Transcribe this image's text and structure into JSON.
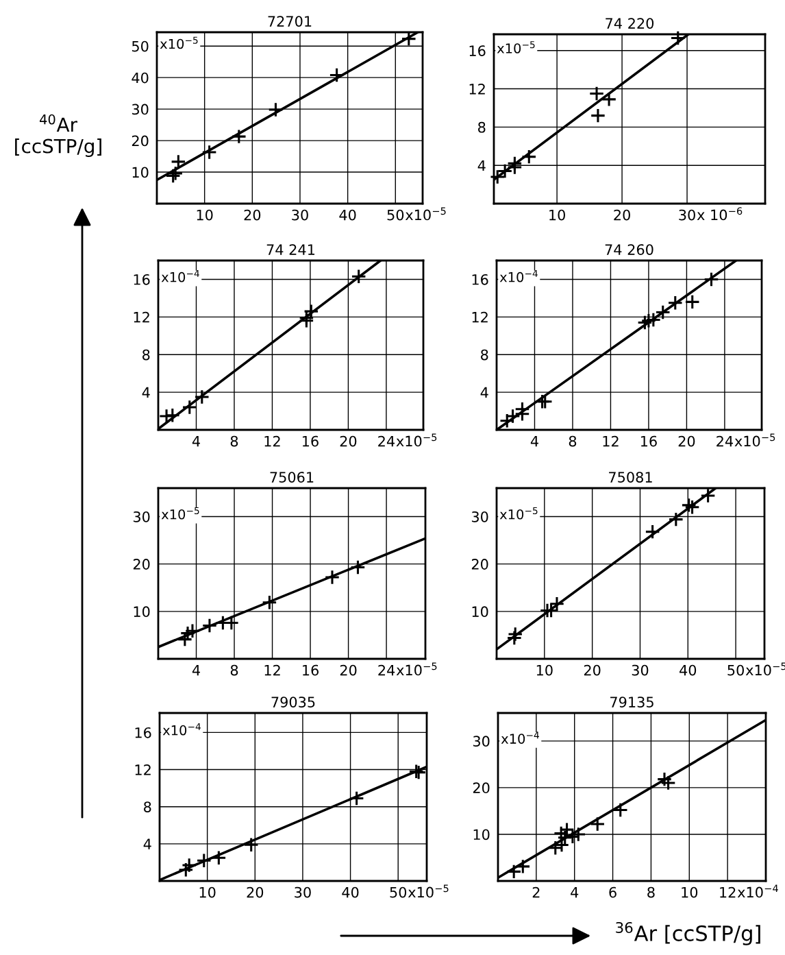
{
  "chart_data": [
    {
      "type": "scatter",
      "title": "72701",
      "ylabel": "$^{40}$Ar\n[ccSTP/g]",
      "grid": true,
      "xlim": [
        0,
        55.7
      ],
      "ylim": [
        0,
        54.4
      ],
      "xticks": [
        10,
        20,
        30,
        40,
        50
      ],
      "yticks": [
        10,
        20,
        30,
        40,
        50
      ],
      "annotations": [
        "x10$^{−5}$",
        "x10$^{−5}$"
      ],
      "series": [
        {
          "marker": "cross",
          "color": "#000000",
          "x": [
            3.4,
            3.9,
            4.5,
            11,
            17.2,
            24.9,
            37.7,
            52.8
          ],
          "values": [
            8.8,
            9.6,
            13.3,
            16.3,
            21.3,
            29.8,
            40.8,
            52.3
          ]
        },
        {
          "type": "line",
          "line_style": "solid",
          "color": "#000000",
          "x": [
            0,
            54.7
          ],
          "values": [
            7.5,
            54.4
          ]
        }
      ]
    },
    {
      "type": "scatter",
      "title": "74 220",
      "grid": true,
      "xlim": [
        0.3,
        42
      ],
      "ylim": [
        0,
        17.7
      ],
      "xticks": [
        10,
        20,
        30
      ],
      "yticks": [
        4,
        8,
        12,
        16
      ],
      "annotations": [
        "x 10$^{−6}$",
        "x10$^{−5}$"
      ],
      "series": [
        {
          "marker": "cross",
          "color": "#000000",
          "x": [
            0.85,
            2.0,
            3.5,
            3.5,
            5.7,
            16.1,
            16.3,
            18,
            28.6
          ],
          "values": [
            2.8,
            3.4,
            3.8,
            4.2,
            4.9,
            11.5,
            9.2,
            10.9,
            17.3
          ]
        },
        {
          "type": "line",
          "line_style": "solid",
          "color": "#000000",
          "x": [
            0.3,
            30.2
          ],
          "values": [
            2.5,
            17.7
          ]
        }
      ]
    },
    {
      "type": "scatter",
      "title": "74 241",
      "grid": true,
      "xlim": [
        0,
        27.9
      ],
      "ylim": [
        0,
        18
      ],
      "xticks": [
        4,
        8,
        12,
        16,
        20,
        24
      ],
      "yticks": [
        4,
        8,
        12,
        16
      ],
      "annotations": [
        "x10$^{−5}$",
        "x10$^{−4}$"
      ],
      "series": [
        {
          "marker": "cross",
          "color": "#000000",
          "x": [
            0.87,
            1.5,
            3.3,
            4.6,
            15.6,
            15.6,
            16.1,
            21.1
          ],
          "values": [
            1.46,
            1.55,
            2.4,
            3.5,
            11.9,
            11.6,
            12.6,
            16.3
          ]
        },
        {
          "type": "line",
          "line_style": "solid",
          "color": "#000000",
          "x": [
            0,
            23.4
          ],
          "values": [
            0.1,
            18
          ]
        }
      ]
    },
    {
      "type": "scatter",
      "title": "74 260",
      "grid": true,
      "xlim": [
        0,
        27.9
      ],
      "ylim": [
        0,
        18
      ],
      "xticks": [
        4,
        8,
        12,
        16,
        20,
        24
      ],
      "yticks": [
        4,
        8,
        12,
        16
      ],
      "annotations": [
        "x10$^{−5}$",
        "x10$^{−4}$"
      ],
      "series": [
        {
          "marker": "cross",
          "color": "#000000",
          "x": [
            1.1,
            1.7,
            2.7,
            2.7,
            4.8,
            5.1,
            15.6,
            16.0,
            16.5,
            17.5,
            18.8,
            20.6,
            22.6
          ],
          "values": [
            0.97,
            1.46,
            2.2,
            1.7,
            3.0,
            3.0,
            11.4,
            11.6,
            11.7,
            12.5,
            13.5,
            13.6,
            16.0
          ]
        },
        {
          "type": "line",
          "line_style": "solid",
          "color": "#000000",
          "x": [
            0,
            25.2
          ],
          "values": [
            0,
            18
          ]
        }
      ]
    },
    {
      "type": "scatter",
      "title": "75061",
      "grid": true,
      "xlim": [
        0,
        28.1
      ],
      "ylim": [
        0,
        36
      ],
      "xticks": [
        4,
        8,
        12,
        16,
        20,
        24
      ],
      "yticks": [
        10,
        20,
        30
      ],
      "annotations": [
        "x10$^{−5}$",
        "x10$^{−5}$"
      ],
      "series": [
        {
          "marker": "cross",
          "color": "#000000",
          "x": [
            2.8,
            3.1,
            3.6,
            5.4,
            6.8,
            7.7,
            11.7,
            18.3,
            21.0
          ],
          "values": [
            4.1,
            5.4,
            5.9,
            7.0,
            7.6,
            7.6,
            11.9,
            17.2,
            19.3
          ]
        },
        {
          "type": "line",
          "line_style": "solid",
          "color": "#000000",
          "x": [
            0,
            28.1
          ],
          "values": [
            2.5,
            25.4
          ]
        }
      ]
    },
    {
      "type": "scatter",
      "title": "75081",
      "grid": true,
      "xlim": [
        0,
        56
      ],
      "ylim": [
        0,
        36
      ],
      "xticks": [
        10,
        20,
        30,
        40,
        50
      ],
      "yticks": [
        10,
        20,
        30
      ],
      "annotations": [
        "x10$^{−5}$",
        "x10$^{−5}$"
      ],
      "series": [
        {
          "marker": "cross",
          "color": "#000000",
          "x": [
            3.7,
            3.9,
            10.6,
            11.4,
            12.6,
            32.6,
            37.5,
            40.2,
            40.9,
            44.2
          ],
          "values": [
            4.4,
            5.2,
            10.2,
            10.2,
            11.6,
            26.8,
            29.4,
            32.4,
            32.0,
            34.4
          ]
        },
        {
          "type": "line",
          "line_style": "solid",
          "color": "#000000",
          "x": [
            0,
            45.8
          ],
          "values": [
            2.0,
            36
          ]
        }
      ]
    },
    {
      "type": "scatter",
      "title": "79035",
      "grid": true,
      "xlim": [
        0,
        56
      ],
      "ylim": [
        0,
        18.1
      ],
      "xticks": [
        10,
        20,
        30,
        40,
        50
      ],
      "yticks": [
        4,
        8,
        12,
        16
      ],
      "annotations": [
        "x10$^{−5}$",
        "x10$^{−4}$"
      ],
      "series": [
        {
          "marker": "cross",
          "color": "#000000",
          "x": [
            5.5,
            6.2,
            9.3,
            12.4,
            19.2,
            41.3,
            53.8,
            54.3
          ],
          "values": [
            1.2,
            1.7,
            2.2,
            2.5,
            3.9,
            8.9,
            11.8,
            11.7
          ]
        },
        {
          "type": "line",
          "line_style": "solid",
          "color": "#000000",
          "x": [
            0,
            56
          ],
          "values": [
            0.1,
            12.3
          ]
        }
      ]
    },
    {
      "type": "scatter",
      "title": "79135",
      "xlabel": "$^{36}$Ar [ccSTP/g]",
      "grid": true,
      "xlim": [
        0,
        14
      ],
      "ylim": [
        0,
        36
      ],
      "xticks": [
        2,
        4,
        6,
        8,
        10,
        12
      ],
      "yticks": [
        10,
        20,
        30
      ],
      "annotations": [
        "x10$^{−4}$",
        "x10$^{−4}$"
      ],
      "series": [
        {
          "marker": "cross",
          "color": "#000000",
          "x": [
            0.83,
            1.3,
            3.0,
            3.33,
            3.3,
            3.6,
            3.5,
            3.9,
            4.2,
            5.2,
            6.4,
            8.7,
            8.9
          ],
          "values": [
            2.0,
            3.1,
            7.1,
            7.7,
            10.2,
            11.0,
            9.3,
            9.5,
            10.0,
            12.2,
            15.2,
            21.8,
            21.0
          ]
        },
        {
          "type": "line",
          "line_style": "solid",
          "color": "#000000",
          "x": [
            0,
            14
          ],
          "values": [
            0.7,
            34.5
          ]
        }
      ]
    }
  ]
}
